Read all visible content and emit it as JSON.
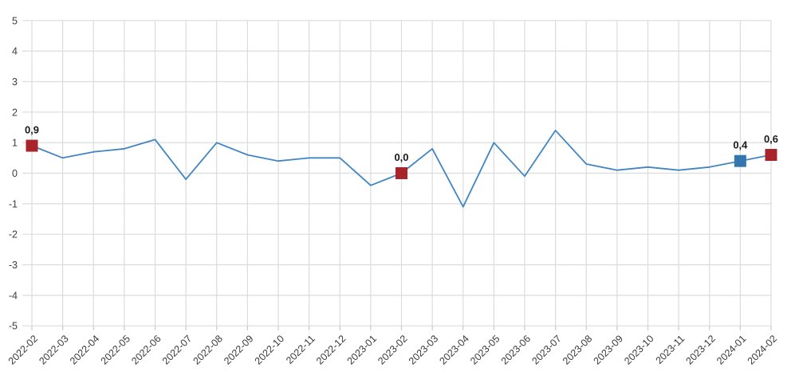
{
  "chart_data": {
    "type": "line",
    "title": "",
    "xlabel": "",
    "ylabel": "",
    "categories": [
      "2022-02",
      "2022-03",
      "2022-04",
      "2022-05",
      "2022-06",
      "2022-07",
      "2022-08",
      "2022-09",
      "2022-10",
      "2022-11",
      "2022-12",
      "2023-01",
      "2023-02",
      "2023-03",
      "2023-04",
      "2023-05",
      "2023-06",
      "2023-07",
      "2023-08",
      "2023-09",
      "2023-10",
      "2023-11",
      "2023-12",
      "2024-01",
      "2024-02"
    ],
    "values": [
      0.9,
      0.5,
      0.7,
      0.8,
      1.1,
      -0.2,
      1.0,
      0.6,
      0.4,
      0.5,
      0.5,
      -0.4,
      0.0,
      0.8,
      -1.1,
      1.0,
      -0.1,
      1.4,
      0.3,
      0.1,
      0.2,
      0.1,
      0.2,
      0.4,
      0.6
    ],
    "ylim": [
      -5,
      5
    ],
    "ytick_labels": [
      "5",
      "4",
      "3",
      "2",
      "1",
      "0",
      "-1",
      "-2",
      "-3",
      "-4",
      "-5"
    ],
    "grid": true,
    "legend": "none",
    "decimal_separator": ",",
    "highlighted_points": [
      {
        "category": "2022-02",
        "index": 0,
        "value": 0.9,
        "label": "0,9",
        "color": "#a8242a"
      },
      {
        "category": "2023-02",
        "index": 12,
        "value": 0.0,
        "label": "0,0",
        "color": "#a8242a"
      },
      {
        "category": "2024-01",
        "index": 23,
        "value": 0.4,
        "label": "0,4",
        "color": "#3476b0"
      },
      {
        "category": "2024-02",
        "index": 24,
        "value": 0.6,
        "label": "0,6",
        "color": "#a8242a"
      }
    ],
    "colors": {
      "line": "#4186c3",
      "marker_red": "#a8242a",
      "marker_blue": "#3476b0",
      "grid": "#dcdcdc",
      "tick": "#c8c8c8",
      "axis_text": "#3a3a3a",
      "value_label_text": "#1a1a1a",
      "background": "#ffffff"
    }
  }
}
